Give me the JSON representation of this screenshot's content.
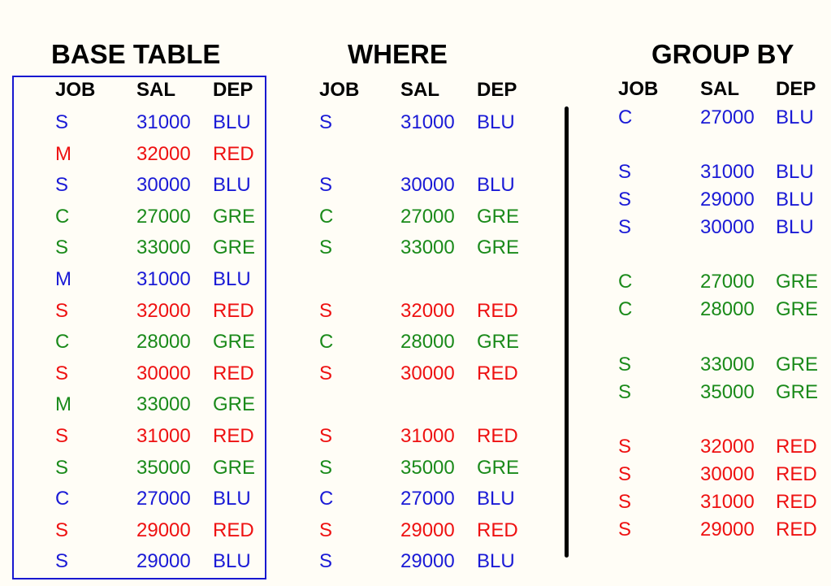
{
  "colors": {
    "BLU": "#1a1ad6",
    "RED": "#ee1111",
    "GRE": "#1a8a1a",
    "frame": "#1818d0"
  },
  "headers": [
    "JOB",
    "SAL",
    "DEP"
  ],
  "base_table": {
    "title": "BASE TABLE",
    "rows": [
      {
        "job": "S",
        "sal": "31000",
        "dep": "BLU",
        "color": "BLU"
      },
      {
        "job": "M",
        "sal": "32000",
        "dep": "RED",
        "color": "RED"
      },
      {
        "job": "S",
        "sal": "30000",
        "dep": "BLU",
        "color": "BLU"
      },
      {
        "job": "C",
        "sal": "27000",
        "dep": "GRE",
        "color": "GRE"
      },
      {
        "job": "S",
        "sal": "33000",
        "dep": "GRE",
        "color": "GRE"
      },
      {
        "job": "M",
        "sal": "31000",
        "dep": "BLU",
        "color": "BLU"
      },
      {
        "job": "S",
        "sal": "32000",
        "dep": "RED",
        "color": "RED"
      },
      {
        "job": "C",
        "sal": "28000",
        "dep": "GRE",
        "color": "GRE"
      },
      {
        "job": "S",
        "sal": "30000",
        "dep": "RED",
        "color": "RED"
      },
      {
        "job": "M",
        "sal": "33000",
        "dep": "GRE",
        "color": "GRE"
      },
      {
        "job": "S",
        "sal": "31000",
        "dep": "RED",
        "color": "RED"
      },
      {
        "job": "S",
        "sal": "35000",
        "dep": "GRE",
        "color": "GRE"
      },
      {
        "job": "C",
        "sal": "27000",
        "dep": "BLU",
        "color": "BLU"
      },
      {
        "job": "S",
        "sal": "29000",
        "dep": "RED",
        "color": "RED"
      },
      {
        "job": "S",
        "sal": "29000",
        "dep": "BLU",
        "color": "BLU"
      }
    ]
  },
  "where": {
    "title": "WHERE",
    "rows": [
      {
        "slot": 0,
        "job": "S",
        "sal": "31000",
        "dep": "BLU",
        "color": "BLU"
      },
      {
        "slot": 2,
        "job": "S",
        "sal": "30000",
        "dep": "BLU",
        "color": "BLU"
      },
      {
        "slot": 3,
        "job": "C",
        "sal": "27000",
        "dep": "GRE",
        "color": "GRE"
      },
      {
        "slot": 4,
        "job": "S",
        "sal": "33000",
        "dep": "GRE",
        "color": "GRE"
      },
      {
        "slot": 6,
        "job": "S",
        "sal": "32000",
        "dep": "RED",
        "color": "RED"
      },
      {
        "slot": 7,
        "job": "C",
        "sal": "28000",
        "dep": "GRE",
        "color": "GRE"
      },
      {
        "slot": 8,
        "job": "S",
        "sal": "30000",
        "dep": "RED",
        "color": "RED"
      },
      {
        "slot": 10,
        "job": "S",
        "sal": "31000",
        "dep": "RED",
        "color": "RED"
      },
      {
        "slot": 11,
        "job": "S",
        "sal": "35000",
        "dep": "GRE",
        "color": "GRE"
      },
      {
        "slot": 12,
        "job": "C",
        "sal": "27000",
        "dep": "BLU",
        "color": "BLU"
      },
      {
        "slot": 13,
        "job": "S",
        "sal": "29000",
        "dep": "RED",
        "color": "RED"
      },
      {
        "slot": 14,
        "job": "S",
        "sal": "29000",
        "dep": "BLU",
        "color": "BLU"
      }
    ]
  },
  "group_by": {
    "title": "GROUP BY",
    "groups": [
      [
        {
          "job": "C",
          "sal": "27000",
          "dep": "BLU",
          "color": "BLU"
        }
      ],
      [
        {
          "job": "S",
          "sal": "31000",
          "dep": "BLU",
          "color": "BLU"
        },
        {
          "job": "S",
          "sal": "29000",
          "dep": "BLU",
          "color": "BLU"
        },
        {
          "job": "S",
          "sal": "30000",
          "dep": "BLU",
          "color": "BLU"
        }
      ],
      [
        {
          "job": "C",
          "sal": "27000",
          "dep": "GRE",
          "color": "GRE"
        },
        {
          "job": "C",
          "sal": "28000",
          "dep": "GRE",
          "color": "GRE"
        }
      ],
      [
        {
          "job": "S",
          "sal": "33000",
          "dep": "GRE",
          "color": "GRE"
        },
        {
          "job": "S",
          "sal": "35000",
          "dep": "GRE",
          "color": "GRE"
        }
      ],
      [
        {
          "job": "S",
          "sal": "32000",
          "dep": "RED",
          "color": "RED"
        },
        {
          "job": "S",
          "sal": "30000",
          "dep": "RED",
          "color": "RED"
        },
        {
          "job": "S",
          "sal": "31000",
          "dep": "RED",
          "color": "RED"
        },
        {
          "job": "S",
          "sal": "29000",
          "dep": "RED",
          "color": "RED"
        }
      ]
    ]
  }
}
